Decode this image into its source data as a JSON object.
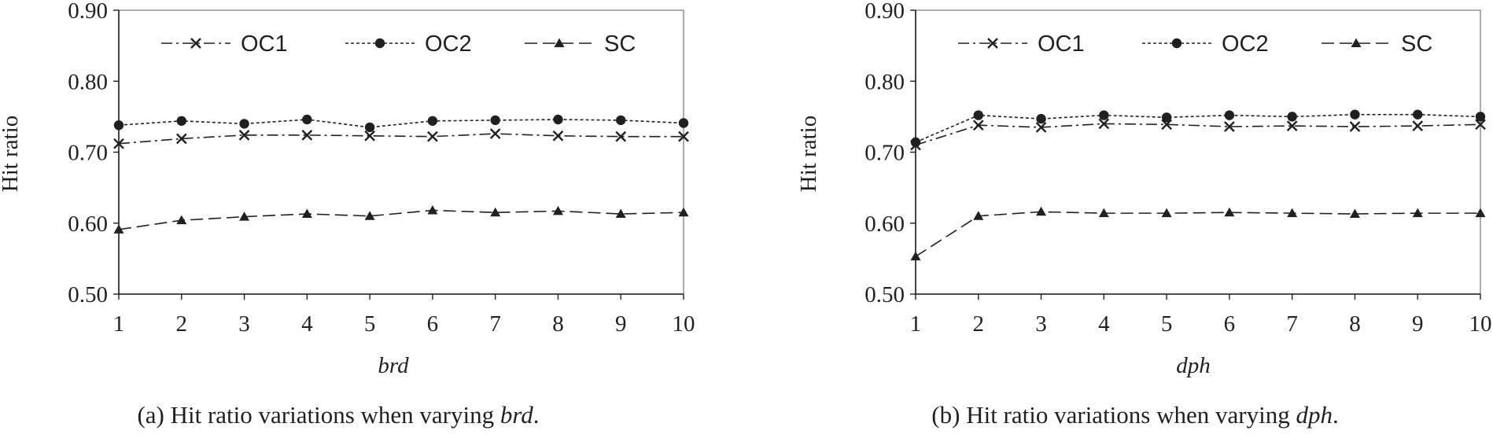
{
  "chart_data": [
    {
      "type": "line",
      "title": "",
      "xlabel": "brd",
      "ylabel": "Hit ratio",
      "categories": [
        "1",
        "2",
        "3",
        "4",
        "5",
        "6",
        "7",
        "8",
        "9",
        "10"
      ],
      "yticks": [
        "0.50",
        "0.60",
        "0.70",
        "0.80",
        "0.90"
      ],
      "ylim": [
        0.5,
        0.9
      ],
      "grid": false,
      "legend_position": "top",
      "series": [
        {
          "name": "OC1",
          "marker": "x",
          "dash": "dashdot",
          "values": [
            0.712,
            0.719,
            0.724,
            0.724,
            0.723,
            0.722,
            0.726,
            0.723,
            0.722,
            0.722
          ]
        },
        {
          "name": "OC2",
          "marker": "circle",
          "dash": "dotted",
          "values": [
            0.738,
            0.744,
            0.74,
            0.746,
            0.735,
            0.744,
            0.745,
            0.746,
            0.745,
            0.741
          ]
        },
        {
          "name": "SC",
          "marker": "triangle",
          "dash": "dashed",
          "values": [
            0.591,
            0.604,
            0.609,
            0.613,
            0.61,
            0.618,
            0.615,
            0.617,
            0.613,
            0.615
          ]
        }
      ],
      "caption": {
        "prefix": "(a) Hit ratio variations when varying ",
        "var": "brd",
        "suffix": "."
      }
    },
    {
      "type": "line",
      "title": "",
      "xlabel": "dph",
      "ylabel": "Hit ratio",
      "categories": [
        "1",
        "2",
        "3",
        "4",
        "5",
        "6",
        "7",
        "8",
        "9",
        "10"
      ],
      "yticks": [
        "0.50",
        "0.60",
        "0.70",
        "0.80",
        "0.90"
      ],
      "ylim": [
        0.5,
        0.9
      ],
      "grid": false,
      "legend_position": "top",
      "series": [
        {
          "name": "OC1",
          "marker": "x",
          "dash": "dashdot",
          "values": [
            0.71,
            0.738,
            0.735,
            0.74,
            0.739,
            0.736,
            0.737,
            0.736,
            0.737,
            0.739
          ]
        },
        {
          "name": "OC2",
          "marker": "circle",
          "dash": "dotted",
          "values": [
            0.714,
            0.752,
            0.747,
            0.752,
            0.749,
            0.752,
            0.75,
            0.753,
            0.753,
            0.75
          ]
        },
        {
          "name": "SC",
          "marker": "triangle",
          "dash": "dashed",
          "values": [
            0.553,
            0.61,
            0.616,
            0.614,
            0.614,
            0.615,
            0.614,
            0.613,
            0.614,
            0.614
          ]
        }
      ],
      "caption": {
        "prefix": "(b) Hit ratio variations when varying ",
        "var": "dph",
        "suffix": "."
      }
    }
  ]
}
